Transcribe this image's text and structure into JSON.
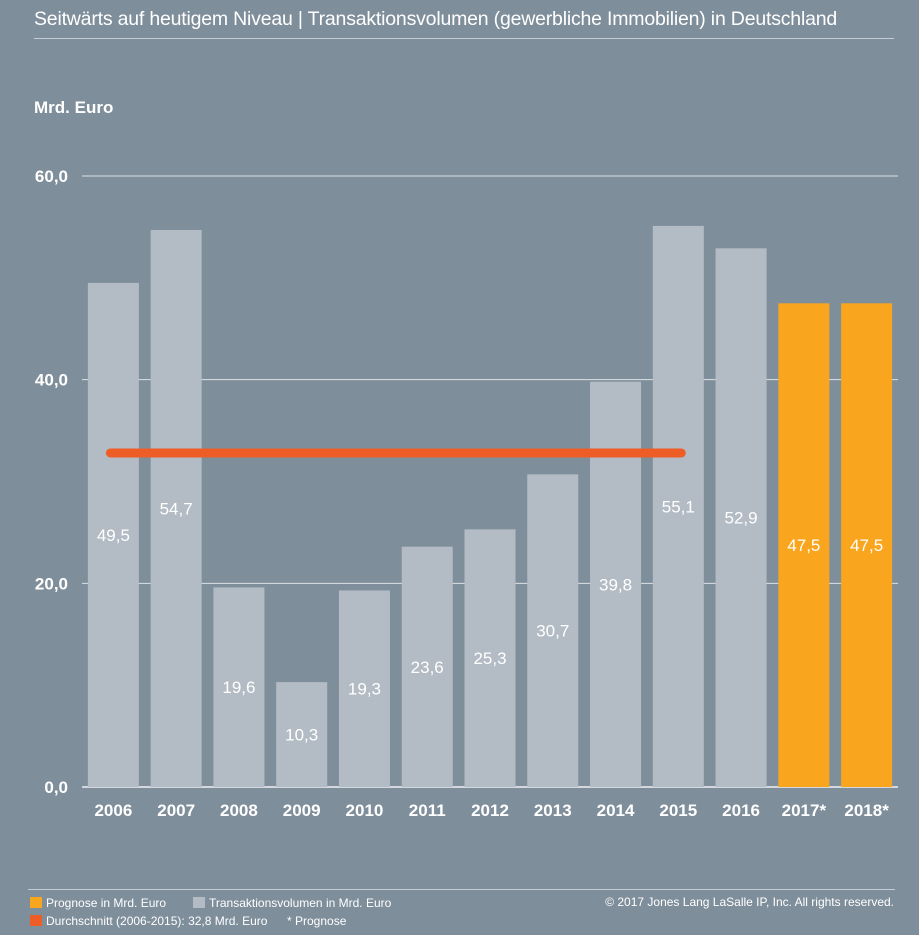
{
  "title": "Seitwärts auf heutigem Niveau | Transaktionsvolumen (gewerbliche Immobilien) in Deutschland",
  "unit_label": "Mrd. Euro",
  "chart_data": {
    "type": "bar",
    "ylabel": "Mrd. Euro",
    "ylim": [
      0,
      60
    ],
    "yticks": [
      "0,0",
      "20,0",
      "40,0",
      "60,0"
    ],
    "ytick_values": [
      0,
      20,
      40,
      60
    ],
    "grid": true,
    "categories": [
      "2006",
      "2007",
      "2008",
      "2009",
      "2010",
      "2011",
      "2012",
      "2013",
      "2014",
      "2015",
      "2016",
      "2017*",
      "2018*"
    ],
    "values": [
      49.5,
      54.7,
      19.6,
      10.3,
      19.3,
      23.6,
      25.3,
      30.7,
      39.8,
      55.1,
      52.9,
      47.5,
      47.5
    ],
    "value_labels": [
      "49,5",
      "54,7",
      "19,6",
      "10,3",
      "19,3",
      "23,6",
      "25,3",
      "30,7",
      "39,8",
      "55,1",
      "52,9",
      "47,5",
      "47,5"
    ],
    "bar_kind": [
      "actual",
      "actual",
      "actual",
      "actual",
      "actual",
      "actual",
      "actual",
      "actual",
      "actual",
      "actual",
      "actual",
      "forecast",
      "forecast"
    ],
    "average": {
      "value": 32.8,
      "from": "2006",
      "to": "2015"
    },
    "colors": {
      "actual": "#b3bcc5",
      "forecast": "#f9a51d",
      "average": "#ee5d26",
      "grid": "#dce2e7"
    }
  },
  "legend": {
    "forecast": "Prognose in Mrd. Euro",
    "actual": "Transaktionsvolumen in Mrd. Euro",
    "average": "Durchschnitt (2006-2015): 32,8 Mrd. Euro",
    "note": "* Prognose"
  },
  "copyright": "© 2017 Jones Lang LaSalle IP, Inc. All rights reserved."
}
